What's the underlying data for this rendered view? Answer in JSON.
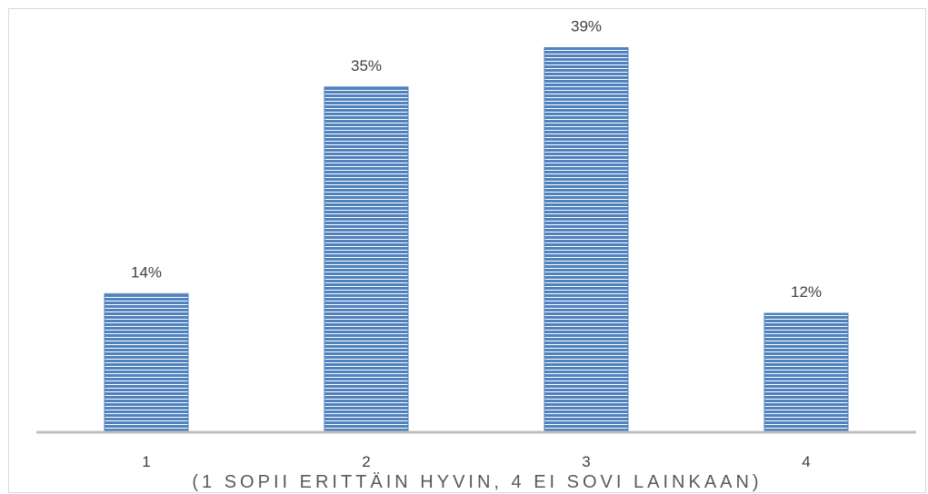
{
  "chart_data": {
    "type": "bar",
    "categories": [
      "1",
      "2",
      "3",
      "4"
    ],
    "values": [
      14,
      35,
      39,
      12
    ],
    "data_labels": [
      "14%",
      "35%",
      "39%",
      "12%"
    ],
    "title": "",
    "xlabel": "(1 SOPII ERITTÄIN HYVIN, 4 EI SOVI LAINKAAN)",
    "ylabel": "",
    "ylim": [
      0,
      42
    ],
    "grid": false,
    "legend": "none",
    "bar_color": "#4f81bd",
    "stripe_color": "#ffffff",
    "axis_color": "#bfbfbf"
  }
}
